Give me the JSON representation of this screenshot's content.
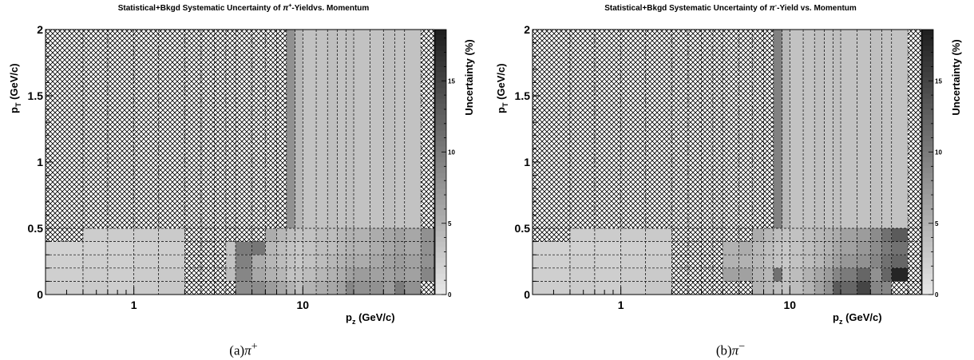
{
  "chart_data": [
    {
      "type": "heatmap",
      "title_parts": [
        "Statistical+Bkgd Systematic Uncertainty of ",
        "π",
        "+",
        "-Yieldvs. Momentum"
      ],
      "xlabel_parts": [
        "p",
        "z",
        " (GeV/c)"
      ],
      "ylabel_parts": [
        "p",
        "T",
        " (GeV/c)"
      ],
      "zlabel": "Uncertainty (%)",
      "x_scale": "log",
      "x_range": [
        0.3,
        60
      ],
      "y_range": [
        0,
        2
      ],
      "z_range": [
        0,
        18.6
      ],
      "x_tick_labels": [
        "1",
        "10"
      ],
      "y_tick_labels": [
        "0",
        "0.5",
        "1",
        "1.5",
        "2"
      ],
      "z_tick_labels": [
        "0",
        "5",
        "10",
        "15"
      ],
      "caption_parts": [
        "(a)",
        "π",
        "+"
      ],
      "empty_bins": "hatched",
      "x_edges": [
        0.3,
        0.5,
        0.7,
        1.0,
        1.4,
        2.0,
        2.5,
        3.0,
        3.5,
        4.0,
        5.0,
        6.0,
        7.0,
        8.0,
        9.0,
        10.0,
        12.0,
        14.0,
        16.0,
        18.0,
        20.0,
        25.0,
        30.0,
        35.0,
        40.0,
        50.0,
        60.0
      ],
      "y_edges": [
        0,
        0.1,
        0.2,
        0.3,
        0.4,
        0.5,
        2.0
      ],
      "z": [
        [
          2.5,
          2.8,
          2.5,
          2.8,
          3.0,
          null,
          null,
          null,
          null,
          8.5,
          8.5,
          7.0,
          6.0,
          5.0,
          4.0,
          5.0,
          5.5,
          6.0,
          6.5,
          9.0,
          8.0,
          8.0,
          7.0,
          10.0,
          8.0,
          null
        ],
        [
          2.3,
          2.5,
          2.4,
          2.6,
          2.8,
          null,
          null,
          null,
          4.0,
          9.0,
          6.0,
          5.0,
          4.5,
          3.5,
          3.5,
          4.0,
          4.5,
          5.0,
          5.5,
          6.5,
          7.0,
          6.5,
          6.5,
          7.0,
          6.5,
          9.0
        ],
        [
          2.2,
          2.4,
          2.3,
          2.5,
          2.6,
          null,
          null,
          null,
          3.5,
          9.5,
          5.5,
          4.5,
          4.0,
          3.5,
          3.0,
          3.5,
          4.0,
          4.5,
          5.0,
          5.5,
          5.5,
          6.0,
          6.5,
          7.0,
          6.5,
          8.0
        ],
        [
          2.0,
          2.2,
          2.2,
          2.4,
          2.5,
          null,
          null,
          null,
          3.5,
          10.0,
          10.5,
          4.5,
          4.0,
          3.5,
          3.0,
          3.5,
          4.0,
          4.0,
          4.5,
          5.0,
          5.0,
          5.5,
          6.0,
          6.5,
          6.0,
          8.0
        ],
        [
          null,
          2.5,
          2.6,
          2.7,
          2.8,
          null,
          null,
          null,
          null,
          null,
          null,
          5.5,
          4.5,
          4.0,
          3.5,
          3.5,
          4.0,
          4.0,
          4.5,
          5.0,
          5.0,
          5.5,
          6.0,
          6.5,
          6.0,
          8.0
        ],
        [
          null,
          null,
          null,
          null,
          null,
          null,
          null,
          null,
          null,
          null,
          null,
          null,
          null,
          8.0,
          4.5,
          3.5,
          3.5,
          3.8,
          3.5,
          3.8,
          3.5,
          3.5,
          3.8,
          3.5,
          3.5,
          null
        ]
      ]
    },
    {
      "type": "heatmap",
      "title_parts": [
        "Statistical+Bkgd Systematic Uncertainty of ",
        "π",
        "-",
        "-Yield vs. Momentum"
      ],
      "xlabel_parts": [
        "p",
        "z",
        " (GeV/c)"
      ],
      "ylabel_parts": [
        "p",
        "T",
        " (GeV/c)"
      ],
      "zlabel": "Uncertainty (%)",
      "x_scale": "log",
      "x_range": [
        0.3,
        60
      ],
      "y_range": [
        0,
        2
      ],
      "z_range": [
        0,
        18.6
      ],
      "x_tick_labels": [
        "1",
        "10"
      ],
      "y_tick_labels": [
        "0",
        "0.5",
        "1",
        "1.5",
        "2"
      ],
      "z_tick_labels": [
        "0",
        "5",
        "10",
        "15"
      ],
      "caption_parts": [
        "(b)",
        "π",
        "−"
      ],
      "empty_bins": "hatched",
      "x_edges": [
        0.3,
        0.5,
        0.7,
        1.0,
        1.4,
        2.0,
        2.5,
        3.0,
        3.5,
        4.0,
        5.0,
        6.0,
        7.0,
        8.0,
        9.0,
        10.0,
        12.0,
        14.0,
        16.0,
        18.0,
        20.0,
        25.0,
        30.0,
        35.0,
        40.0,
        50.0,
        60.0
      ],
      "y_edges": [
        0,
        0.1,
        0.2,
        0.3,
        0.4,
        0.5,
        2.0
      ],
      "z": [
        [
          2.5,
          2.7,
          2.5,
          2.7,
          3.0,
          null,
          null,
          null,
          null,
          null,
          null,
          5.0,
          4.5,
          4.0,
          3.5,
          4.0,
          5.0,
          6.5,
          8.0,
          13.0,
          12.0,
          15.0,
          9.0,
          9.0,
          null,
          null
        ],
        [
          2.3,
          2.5,
          2.4,
          2.6,
          2.8,
          null,
          null,
          null,
          null,
          6.5,
          6.5,
          5.0,
          4.5,
          11.0,
          3.5,
          4.0,
          5.0,
          6.0,
          7.0,
          9.0,
          10.0,
          12.0,
          8.0,
          12.0,
          18.0,
          null
        ],
        [
          2.2,
          2.4,
          2.3,
          2.5,
          2.6,
          null,
          null,
          null,
          null,
          5.0,
          5.0,
          4.5,
          4.0,
          3.5,
          3.0,
          3.5,
          4.0,
          4.5,
          5.5,
          6.5,
          7.5,
          8.0,
          9.0,
          11.0,
          12.0,
          null
        ],
        [
          2.0,
          2.2,
          2.2,
          2.4,
          2.5,
          null,
          null,
          null,
          null,
          5.0,
          5.5,
          4.5,
          4.0,
          3.5,
          3.0,
          3.5,
          4.0,
          4.5,
          5.0,
          6.0,
          6.5,
          7.5,
          8.5,
          10.0,
          11.0,
          null
        ],
        [
          null,
          2.5,
          2.6,
          2.7,
          2.8,
          null,
          null,
          null,
          null,
          null,
          null,
          5.5,
          4.5,
          4.0,
          3.5,
          3.5,
          4.0,
          4.5,
          5.0,
          5.5,
          6.5,
          7.0,
          8.5,
          11.0,
          13.0,
          null
        ],
        [
          null,
          null,
          null,
          null,
          null,
          null,
          null,
          null,
          null,
          null,
          null,
          null,
          null,
          9.5,
          4.5,
          3.5,
          3.5,
          3.8,
          3.5,
          3.8,
          3.5,
          3.5,
          3.8,
          3.5,
          3.5,
          null
        ]
      ]
    }
  ]
}
